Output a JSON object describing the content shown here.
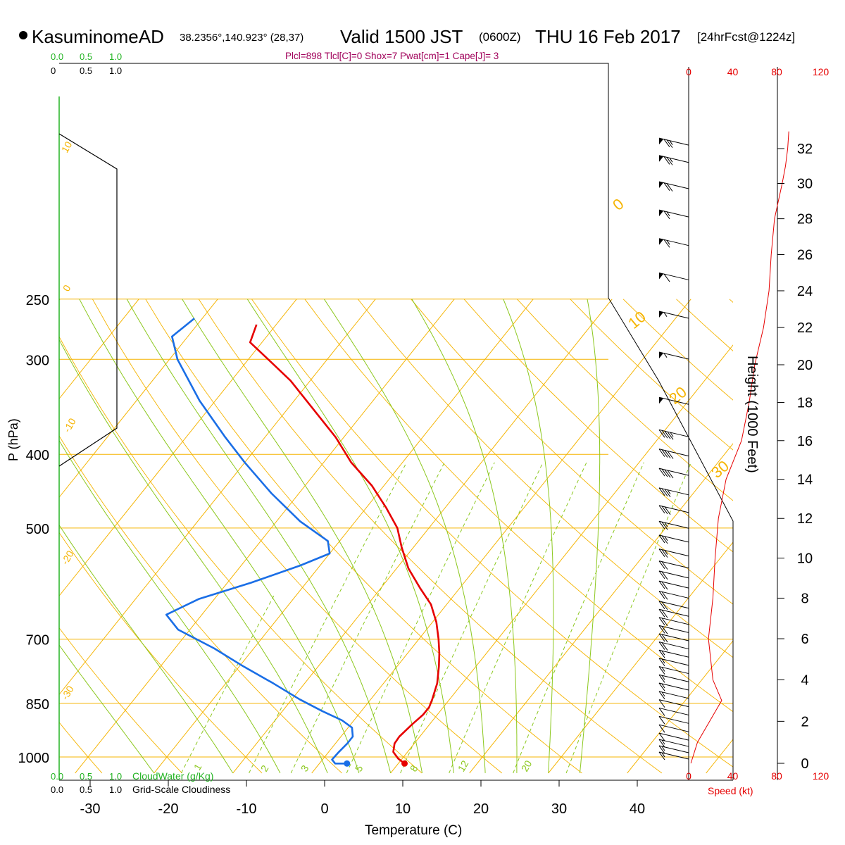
{
  "header": {
    "station": "KasuminomeAD",
    "coords": "38.2356°,140.923° (28,37)",
    "valid": "Valid 1500 JST",
    "zulu": "(0600Z)",
    "date": "THU 16 Feb 2017",
    "forecast": "[24hrFcst@1224z]",
    "indices": "Plcl=898 Tlcl[C]=0 Shox=7 Pwat[cm]=1 Cape[J]= 3"
  },
  "labels": {
    "ylabel": "P (hPa)",
    "xlabel": "Temperature (C)",
    "height_label": "Height (1000 Feet)",
    "cloudwater": "CloudWater (g/Kg)",
    "cloudiness": "Grid-Scale Cloudiness",
    "speed": "Speed (kt)",
    "cw_ticks": [
      "0.0",
      "0.5",
      "1.0"
    ],
    "cl_ticks": [
      "0.0",
      "0.5",
      "1.0"
    ],
    "cl_ticks_top": [
      "0",
      "0.5",
      "1.0"
    ]
  },
  "colors": {
    "temperature": "#e60000",
    "dewpoint": "#1a6ee6",
    "isotherm": "#f5b400",
    "dry_adiabat": "#f5b400",
    "moist_adiabat": "#8cc81e",
    "mixing_ratio": "#8cc81e",
    "indices": "#a0005a",
    "cloud": "#22b422",
    "speed": "#e60000"
  },
  "chart_data": {
    "type": "line",
    "pressure_ticks": [
      250,
      300,
      400,
      500,
      700,
      850,
      1000
    ],
    "temperature_ticks": [
      -30,
      -20,
      -10,
      0,
      10,
      20,
      30,
      40
    ],
    "height_ticks": [
      0,
      2,
      4,
      6,
      8,
      10,
      12,
      14,
      16,
      18,
      20,
      22,
      24,
      26,
      28,
      30,
      32
    ],
    "speed_ticks": [
      0,
      40,
      80,
      120
    ],
    "xlim": [
      -33,
      37
    ],
    "ylim": [
      1050,
      250
    ],
    "isotherm_labels": [
      "10",
      "0",
      "-10",
      "-20",
      "-30",
      "0",
      "10",
      "20",
      "30"
    ],
    "mixing_ratio_labels": [
      "1",
      "2",
      "3",
      "5",
      "8",
      "12",
      "20"
    ],
    "series": [
      {
        "name": "temperature",
        "points": [
          [
            10.8,
            1020
          ],
          [
            9.5,
            1005
          ],
          [
            8.2,
            985
          ],
          [
            7.5,
            960
          ],
          [
            7.4,
            940
          ],
          [
            7.8,
            905
          ],
          [
            8.2,
            880
          ],
          [
            8.2,
            860
          ],
          [
            7.8,
            840
          ],
          [
            6.8,
            800
          ],
          [
            5.3,
            760
          ],
          [
            4.0,
            730
          ],
          [
            2.5,
            700
          ],
          [
            0.5,
            665
          ],
          [
            -2.0,
            630
          ],
          [
            -5.0,
            600
          ],
          [
            -8.5,
            565
          ],
          [
            -11.5,
            530
          ],
          [
            -14.0,
            500
          ],
          [
            -17.5,
            470
          ],
          [
            -21.5,
            440
          ],
          [
            -26.5,
            410
          ],
          [
            -31.0,
            380
          ],
          [
            -36.5,
            350
          ],
          [
            -42.5,
            320
          ],
          [
            -47.5,
            300
          ],
          [
            -51.5,
            285
          ],
          [
            -52.5,
            270
          ]
        ]
      },
      {
        "name": "dewpoint",
        "points": [
          [
            3.5,
            1020
          ],
          [
            2.0,
            1020
          ],
          [
            1.2,
            1008
          ],
          [
            1.3,
            985
          ],
          [
            1.5,
            960
          ],
          [
            1.5,
            940
          ],
          [
            0.5,
            915
          ],
          [
            -1.5,
            895
          ],
          [
            -5.0,
            870
          ],
          [
            -9.0,
            840
          ],
          [
            -14.0,
            800
          ],
          [
            -19.5,
            760
          ],
          [
            -25.0,
            720
          ],
          [
            -31.5,
            680
          ],
          [
            -34.5,
            650
          ],
          [
            -32.0,
            620
          ],
          [
            -27.0,
            590
          ],
          [
            -22.5,
            560
          ],
          [
            -20.0,
            540
          ],
          [
            -21.5,
            520
          ],
          [
            -27.0,
            490
          ],
          [
            -33.5,
            450
          ],
          [
            -40.0,
            410
          ],
          [
            -45.0,
            380
          ],
          [
            -52.0,
            340
          ],
          [
            -59.0,
            300
          ],
          [
            -62.0,
            280
          ],
          [
            -61.0,
            265
          ]
        ]
      },
      {
        "name": "wind_speed",
        "unit": "kt",
        "points": [
          [
            2,
            0
          ],
          [
            8,
            1
          ],
          [
            30,
            3
          ],
          [
            22,
            4
          ],
          [
            18,
            6
          ],
          [
            22,
            8
          ],
          [
            24,
            10
          ],
          [
            27,
            12
          ],
          [
            34,
            14
          ],
          [
            48,
            16
          ],
          [
            55,
            18
          ],
          [
            60,
            20
          ],
          [
            68,
            22
          ],
          [
            73,
            24
          ],
          [
            75,
            26
          ],
          [
            78,
            28
          ],
          [
            85,
            30
          ],
          [
            88,
            31
          ],
          [
            90,
            32
          ],
          [
            91,
            33
          ]
        ]
      }
    ],
    "wind_barbs": [
      {
        "height_kft": 0.2,
        "speed": 15
      },
      {
        "height_kft": 0.5,
        "speed": 15
      },
      {
        "height_kft": 0.8,
        "speed": 15
      },
      {
        "height_kft": 1.1,
        "speed": 10
      },
      {
        "height_kft": 1.5,
        "speed": 10
      },
      {
        "height_kft": 1.9,
        "speed": 10
      },
      {
        "height_kft": 2.3,
        "speed": 10
      },
      {
        "height_kft": 2.7,
        "speed": 10
      },
      {
        "height_kft": 3.1,
        "speed": 15
      },
      {
        "height_kft": 3.5,
        "speed": 15
      },
      {
        "height_kft": 3.9,
        "speed": 15
      },
      {
        "height_kft": 4.3,
        "speed": 15
      },
      {
        "height_kft": 4.7,
        "speed": 15
      },
      {
        "height_kft": 5.1,
        "speed": 15
      },
      {
        "height_kft": 5.5,
        "speed": 20
      },
      {
        "height_kft": 5.9,
        "speed": 20
      },
      {
        "height_kft": 6.3,
        "speed": 20
      },
      {
        "height_kft": 6.7,
        "speed": 20
      },
      {
        "height_kft": 7.1,
        "speed": 20
      },
      {
        "height_kft": 7.5,
        "speed": 20
      },
      {
        "height_kft": 8.0,
        "speed": 20
      },
      {
        "height_kft": 8.5,
        "speed": 20
      },
      {
        "height_kft": 9.0,
        "speed": 20
      },
      {
        "height_kft": 9.5,
        "speed": 20
      },
      {
        "height_kft": 10.1,
        "speed": 25
      },
      {
        "height_kft": 10.8,
        "speed": 25
      },
      {
        "height_kft": 11.5,
        "speed": 25
      },
      {
        "height_kft": 12.3,
        "speed": 30
      },
      {
        "height_kft": 13.2,
        "speed": 35
      },
      {
        "height_kft": 14.2,
        "speed": 40
      },
      {
        "height_kft": 15.2,
        "speed": 40
      },
      {
        "height_kft": 16.2,
        "speed": 45
      },
      {
        "height_kft": 17.9,
        "speed": 50
      },
      {
        "height_kft": 20.3,
        "speed": 55
      },
      {
        "height_kft": 22.5,
        "speed": 55
      },
      {
        "height_kft": 24.6,
        "speed": 60
      },
      {
        "height_kft": 26.5,
        "speed": 65
      },
      {
        "height_kft": 28.1,
        "speed": 65
      },
      {
        "height_kft": 29.7,
        "speed": 70
      },
      {
        "height_kft": 31.2,
        "speed": 75
      },
      {
        "height_kft": 32.2,
        "speed": 75
      }
    ],
    "grid": true
  }
}
